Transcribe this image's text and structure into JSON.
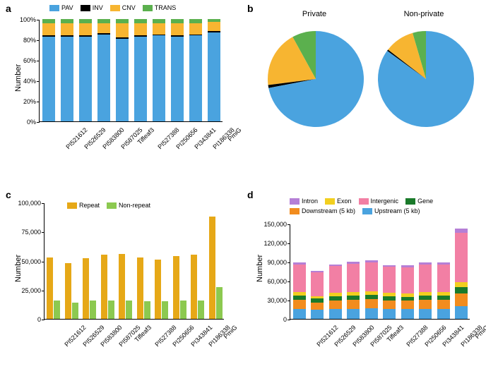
{
  "colors": {
    "PAV": "#4aa3df",
    "INV": "#000000",
    "CNV": "#f7b531",
    "TRANS": "#5bb04e",
    "Repeat": "#e6a817",
    "NonRepeat": "#8cc950",
    "Intron": "#b57fd6",
    "Exon": "#f2cf1f",
    "Intergenic": "#f27fa4",
    "Gene": "#1a7a2a",
    "Downstream": "#f28c1e",
    "Upstream": "#4aa3df",
    "axis": "#000000",
    "grid": "#e0e0e0"
  },
  "samples": [
    "PI521612",
    "PI526529",
    "PI583800",
    "PI587025",
    "Tifleaf3",
    "PI527388",
    "PI250656",
    "PI343841",
    "PI186338",
    "PmiG"
  ],
  "panel_a": {
    "label": "a",
    "y_label": "Number",
    "legend": [
      "PAV",
      "INV",
      "CNV",
      "TRANS"
    ],
    "y_ticks": [
      "0%",
      "20%",
      "40%",
      "60%",
      "80%",
      "100%"
    ],
    "ymax": 100,
    "data": [
      {
        "PAV": 83,
        "INV": 1,
        "CNV": 12,
        "TRANS": 4
      },
      {
        "PAV": 83,
        "INV": 1,
        "CNV": 12,
        "TRANS": 4
      },
      {
        "PAV": 83,
        "INV": 1,
        "CNV": 12,
        "TRANS": 4
      },
      {
        "PAV": 85,
        "INV": 1,
        "CNV": 10,
        "TRANS": 4
      },
      {
        "PAV": 81,
        "INV": 1,
        "CNV": 14,
        "TRANS": 4
      },
      {
        "PAV": 83,
        "INV": 1,
        "CNV": 12,
        "TRANS": 4
      },
      {
        "PAV": 84,
        "INV": 1,
        "CNV": 11,
        "TRANS": 4
      },
      {
        "PAV": 83,
        "INV": 1,
        "CNV": 12,
        "TRANS": 4
      },
      {
        "PAV": 84,
        "INV": 1,
        "CNV": 11,
        "TRANS": 4
      },
      {
        "PAV": 87,
        "INV": 1,
        "CNV": 9,
        "TRANS": 3
      }
    ]
  },
  "panel_b": {
    "label": "b",
    "titles": [
      "Private",
      "Non-private"
    ],
    "legend_order": [
      "PAV",
      "INV",
      "CNV",
      "TRANS"
    ],
    "private": {
      "PAV": 72,
      "INV": 1,
      "CNV": 19,
      "TRANS": 8
    },
    "nonprivate": {
      "PAV": 85,
      "INV": 0.5,
      "CNV": 10,
      "TRANS": 4.5
    }
  },
  "panel_c": {
    "label": "c",
    "y_label": "Number",
    "legend": [
      "Repeat",
      "Non-repeat"
    ],
    "y_ticks": [
      "0",
      "25,000",
      "50,000",
      "75,000",
      "100,000"
    ],
    "ymax": 100000,
    "data": [
      {
        "Repeat": 53000,
        "NonRepeat": 16000
      },
      {
        "Repeat": 48000,
        "NonRepeat": 14000
      },
      {
        "Repeat": 52000,
        "NonRepeat": 16000
      },
      {
        "Repeat": 55000,
        "NonRepeat": 16000
      },
      {
        "Repeat": 56000,
        "NonRepeat": 16000
      },
      {
        "Repeat": 53000,
        "NonRepeat": 15000
      },
      {
        "Repeat": 51000,
        "NonRepeat": 15000
      },
      {
        "Repeat": 54000,
        "NonRepeat": 16000
      },
      {
        "Repeat": 55000,
        "NonRepeat": 16000
      },
      {
        "Repeat": 88000,
        "NonRepeat": 27000
      }
    ]
  },
  "panel_d": {
    "label": "d",
    "y_label": "Number",
    "legend": [
      "Intron",
      "Exon",
      "Intergenic",
      "Gene",
      "Downstream (5 kb)",
      "Upstream (5 kb)"
    ],
    "legend_keys": [
      "Intron",
      "Exon",
      "Intergenic",
      "Gene",
      "Downstream",
      "Upstream"
    ],
    "y_ticks": [
      "0",
      "30,000",
      "60,000",
      "90,000",
      "120,000",
      "150,000"
    ],
    "ymax": 150000,
    "stack_order": [
      "Upstream",
      "Downstream",
      "Gene",
      "Exon",
      "Intergenic",
      "Intron"
    ],
    "data": [
      {
        "Upstream": 16000,
        "Downstream": 14000,
        "Gene": 7000,
        "Exon": 5000,
        "Intergenic": 44000,
        "Intron": 3000
      },
      {
        "Upstream": 14000,
        "Downstream": 12000,
        "Gene": 6000,
        "Exon": 4000,
        "Intergenic": 37000,
        "Intron": 3000
      },
      {
        "Upstream": 16000,
        "Downstream": 13000,
        "Gene": 7000,
        "Exon": 5000,
        "Intergenic": 42000,
        "Intron": 3000
      },
      {
        "Upstream": 16000,
        "Downstream": 14000,
        "Gene": 7000,
        "Exon": 5000,
        "Intergenic": 45000,
        "Intron": 3000
      },
      {
        "Upstream": 17000,
        "Downstream": 14000,
        "Gene": 7000,
        "Exon": 5000,
        "Intergenic": 46000,
        "Intron": 3000
      },
      {
        "Upstream": 16000,
        "Downstream": 13000,
        "Gene": 7000,
        "Exon": 5000,
        "Intergenic": 41000,
        "Intron": 3000
      },
      {
        "Upstream": 16000,
        "Downstream": 13000,
        "Gene": 6000,
        "Exon": 5000,
        "Intergenic": 41000,
        "Intron": 3000
      },
      {
        "Upstream": 16000,
        "Downstream": 14000,
        "Gene": 7000,
        "Exon": 5000,
        "Intergenic": 44000,
        "Intron": 3000
      },
      {
        "Upstream": 16000,
        "Downstream": 14000,
        "Gene": 7000,
        "Exon": 5000,
        "Intergenic": 44000,
        "Intron": 3000
      },
      {
        "Upstream": 20000,
        "Downstream": 20000,
        "Gene": 10000,
        "Exon": 8000,
        "Intergenic": 78000,
        "Intron": 6000
      }
    ]
  }
}
